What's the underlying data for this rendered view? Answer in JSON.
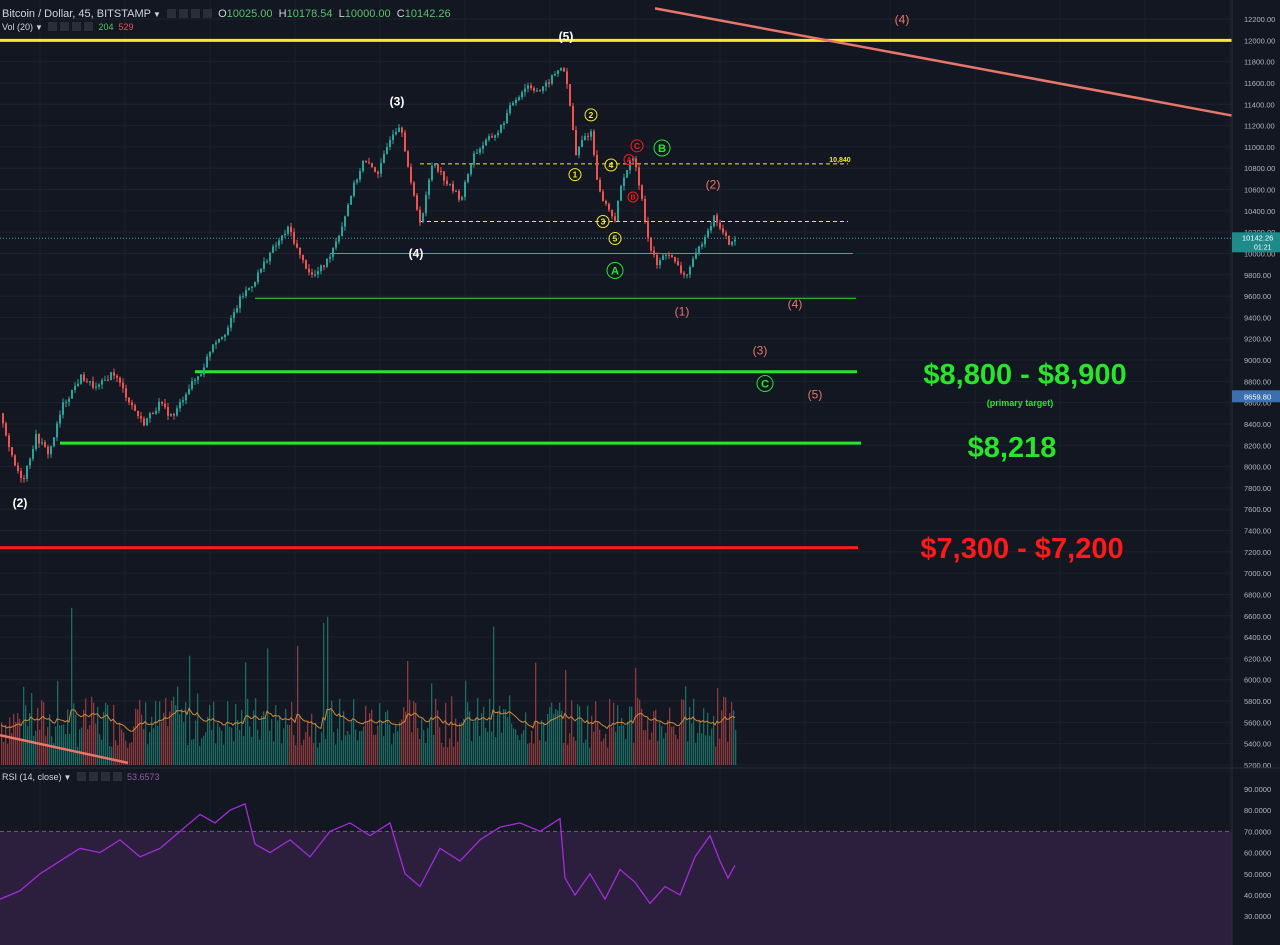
{
  "header": {
    "symbol": "Bitcoin / Dollar, 45, BITSTAMP",
    "open_label": "O",
    "open": "10025.00",
    "high_label": "H",
    "high": "10178.54",
    "low_label": "L",
    "low": "10000.00",
    "close_label": "C",
    "close": "10142.26",
    "vol_label": "Vol (20)",
    "vol_value": "204",
    "vol_ma": "529",
    "rsi_label": "RSI (14, close)",
    "rsi_value": "53.6573"
  },
  "colors": {
    "background": "#131722",
    "up": "#26a69a",
    "down": "#ef5350",
    "yellow": "#f5eb2a",
    "green": "#27e52a",
    "red": "#ff1a1a",
    "salmon": "#e8766a",
    "teal": "#3fa5b8",
    "rsi": "#a32cd8"
  },
  "chart_data": {
    "type": "candlestick",
    "price_axis": {
      "ticks": [
        "12200.00",
        "12000.00",
        "11800.00",
        "11600.00",
        "11400.00",
        "11200.00",
        "11000.00",
        "10800.00",
        "10600.00",
        "10400.00",
        "10200.00",
        "10000.00",
        "9800.00",
        "9600.00",
        "9400.00",
        "9200.00",
        "9000.00",
        "8800.00",
        "8600.00",
        "8400.00",
        "8200.00",
        "8000.00",
        "7800.00",
        "7600.00",
        "7400.00",
        "7200.00",
        "7000.00",
        "6800.00",
        "6600.00",
        "6400.00",
        "6200.00",
        "6000.00",
        "5800.00",
        "5600.00",
        "5400.00",
        "5200.00"
      ],
      "range": [
        5200,
        12200
      ],
      "current_price_label": "10142.26",
      "countdown_label": "01:21",
      "marker_label": "8659.80"
    },
    "rsi_axis": {
      "ticks": [
        "90.0000",
        "80.0000",
        "70.0000",
        "60.0000",
        "50.0000",
        "40.0000",
        "30.0000"
      ],
      "range": [
        30,
        90
      ],
      "overbought": 70
    },
    "price_path": [
      [
        0,
        8500
      ],
      [
        12,
        8040
      ],
      [
        22,
        7880
      ],
      [
        35,
        8280
      ],
      [
        48,
        8120
      ],
      [
        62,
        8580
      ],
      [
        80,
        8840
      ],
      [
        96,
        8730
      ],
      [
        112,
        8890
      ],
      [
        128,
        8620
      ],
      [
        142,
        8400
      ],
      [
        158,
        8590
      ],
      [
        172,
        8460
      ],
      [
        186,
        8720
      ],
      [
        200,
        8880
      ],
      [
        212,
        9160
      ],
      [
        226,
        9280
      ],
      [
        240,
        9590
      ],
      [
        252,
        9720
      ],
      [
        268,
        9990
      ],
      [
        288,
        10240
      ],
      [
        300,
        9950
      ],
      [
        312,
        9780
      ],
      [
        325,
        9910
      ],
      [
        340,
        10230
      ],
      [
        350,
        10560
      ],
      [
        362,
        10860
      ],
      [
        378,
        10760
      ],
      [
        390,
        11120
      ],
      [
        400,
        11220
      ],
      [
        410,
        10640
      ],
      [
        420,
        10280
      ],
      [
        432,
        10880
      ],
      [
        446,
        10660
      ],
      [
        460,
        10510
      ],
      [
        472,
        10920
      ],
      [
        484,
        11040
      ],
      [
        498,
        11150
      ],
      [
        512,
        11420
      ],
      [
        526,
        11580
      ],
      [
        540,
        11520
      ],
      [
        552,
        11660
      ],
      [
        562,
        11770
      ],
      [
        568,
        11460
      ],
      [
        575,
        10920
      ],
      [
        582,
        11080
      ],
      [
        590,
        11140
      ],
      [
        598,
        10580
      ],
      [
        606,
        10440
      ],
      [
        614,
        10320
      ],
      [
        622,
        10720
      ],
      [
        632,
        10900
      ],
      [
        640,
        10580
      ],
      [
        648,
        10080
      ],
      [
        656,
        9890
      ],
      [
        666,
        10020
      ],
      [
        676,
        9880
      ],
      [
        684,
        9780
      ],
      [
        694,
        9960
      ],
      [
        704,
        10180
      ],
      [
        714,
        10350
      ],
      [
        722,
        10180
      ],
      [
        730,
        10080
      ],
      [
        735,
        10142
      ]
    ],
    "volume_range": [
      0,
      3400
    ],
    "volume_path_seed": 7,
    "rsi_path": [
      [
        0,
        38
      ],
      [
        20,
        42
      ],
      [
        40,
        50
      ],
      [
        60,
        56
      ],
      [
        80,
        62
      ],
      [
        100,
        60
      ],
      [
        120,
        66
      ],
      [
        140,
        58
      ],
      [
        160,
        62
      ],
      [
        180,
        70
      ],
      [
        200,
        78
      ],
      [
        215,
        74
      ],
      [
        230,
        80
      ],
      [
        245,
        83
      ],
      [
        255,
        64
      ],
      [
        270,
        60
      ],
      [
        290,
        66
      ],
      [
        310,
        58
      ],
      [
        330,
        70
      ],
      [
        350,
        74
      ],
      [
        370,
        68
      ],
      [
        390,
        74
      ],
      [
        405,
        50
      ],
      [
        420,
        44
      ],
      [
        440,
        62
      ],
      [
        460,
        56
      ],
      [
        480,
        66
      ],
      [
        500,
        72
      ],
      [
        520,
        74
      ],
      [
        540,
        70
      ],
      [
        560,
        76
      ],
      [
        565,
        48
      ],
      [
        575,
        40
      ],
      [
        590,
        50
      ],
      [
        605,
        38
      ],
      [
        620,
        52
      ],
      [
        635,
        46
      ],
      [
        650,
        36
      ],
      [
        665,
        44
      ],
      [
        680,
        40
      ],
      [
        695,
        58
      ],
      [
        710,
        68
      ],
      [
        720,
        56
      ],
      [
        728,
        48
      ],
      [
        735,
        54
      ]
    ],
    "levels": [
      {
        "price": 12000,
        "color": "yellow",
        "style": "solid",
        "x_from": 0,
        "x_to": 1232
      },
      {
        "price": 10840,
        "color": "yellow",
        "style": "dashed",
        "x_from": 420,
        "x_to": 848
      },
      {
        "price": 10300,
        "color": "yellow",
        "style": "dashed",
        "x_from": 420,
        "x_to": 848
      },
      {
        "price": 10000,
        "color": "teal",
        "style": "solid",
        "x_from": 330,
        "x_to": 853
      },
      {
        "price": 9580,
        "color": "green",
        "style": "solid",
        "x_from": 255,
        "x_to": 856
      },
      {
        "price": 8890,
        "color": "green",
        "style": "thick",
        "x_from": 195,
        "x_to": 857
      },
      {
        "price": 8220,
        "color": "green",
        "style": "thick",
        "x_from": 60,
        "x_to": 861
      },
      {
        "price": 7240,
        "color": "red",
        "style": "thick",
        "x_from": 0,
        "x_to": 858
      }
    ],
    "level_label_10840": "10,840",
    "trendline_top": {
      "from": [
        655,
        12300
      ],
      "to": [
        1240,
        11280
      ]
    },
    "trendline_low": {
      "from": [
        0,
        5480
      ],
      "to": [
        128,
        5220
      ]
    },
    "annotations": [
      {
        "text": "(2)",
        "x": 20,
        "price": 7620,
        "color": "white"
      },
      {
        "text": "(3)",
        "x": 397,
        "price": 11390,
        "color": "white"
      },
      {
        "text": "(4)",
        "x": 416,
        "price": 9960,
        "color": "white"
      },
      {
        "text": "(5)",
        "x": 566,
        "price": 12000,
        "color": "white"
      },
      {
        "text": "(4)",
        "x": 902,
        "price": 12160,
        "color": "salmon"
      },
      {
        "text": "(2)",
        "x": 713,
        "price": 10610,
        "color": "salmon"
      },
      {
        "text": "(1)",
        "x": 682,
        "price": 9420,
        "color": "salmon"
      },
      {
        "text": "(4)",
        "x": 795,
        "price": 9490,
        "color": "salmon"
      },
      {
        "text": "(3)",
        "x": 760,
        "price": 9050,
        "color": "salmon"
      },
      {
        "text": "(5)",
        "x": 815,
        "price": 8640,
        "color": "salmon"
      }
    ],
    "circle_marks": [
      {
        "text": "1",
        "x": 575,
        "price": 10740,
        "color": "yellow",
        "r": 6
      },
      {
        "text": "2",
        "x": 591,
        "price": 11300,
        "color": "yellow",
        "r": 6
      },
      {
        "text": "3",
        "x": 603,
        "price": 10300,
        "color": "yellow",
        "r": 6
      },
      {
        "text": "4",
        "x": 611,
        "price": 10830,
        "color": "yellow",
        "r": 6
      },
      {
        "text": "5",
        "x": 615,
        "price": 10140,
        "color": "yellow",
        "r": 6
      },
      {
        "text": "A",
        "x": 629,
        "price": 10880,
        "color": "red",
        "r": 5
      },
      {
        "text": "B",
        "x": 633,
        "price": 10530,
        "color": "red",
        "r": 5
      },
      {
        "text": "C",
        "x": 637,
        "price": 11010,
        "color": "red",
        "r": 6
      },
      {
        "text": "A",
        "x": 615,
        "price": 9840,
        "color": "green",
        "r": 8
      },
      {
        "text": "B",
        "x": 662,
        "price": 10990,
        "color": "green",
        "r": 8
      },
      {
        "text": "C",
        "x": 765,
        "price": 8780,
        "color": "green",
        "r": 8
      }
    ],
    "targets": [
      {
        "text": "$8,800 - $8,900",
        "color": "green",
        "x": 1025,
        "y": 384,
        "size": 29
      },
      {
        "text": "(primary target)",
        "color": "green",
        "x": 1020,
        "y": 406,
        "size": 9
      },
      {
        "text": "$8,218",
        "color": "green",
        "x": 1012,
        "y": 457,
        "size": 29
      },
      {
        "text": "$7,300 - $7,200",
        "color": "red",
        "x": 1022,
        "y": 558,
        "size": 29
      }
    ]
  }
}
